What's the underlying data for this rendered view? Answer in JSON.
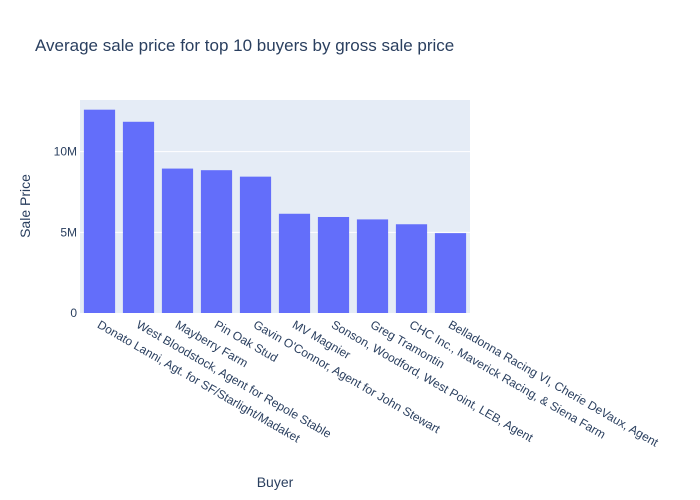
{
  "chart_data": {
    "type": "bar",
    "title": "Average sale price for top 10 buyers by gross sale price",
    "xlabel": "Buyer",
    "ylabel": "Sale Price",
    "ylim": [
      0,
      13200000
    ],
    "yticks": [
      0,
      5000000,
      10000000
    ],
    "ytick_labels": [
      "0",
      "5M",
      "10M"
    ],
    "grid": true,
    "legend": "none",
    "categories": [
      "Donato Lanni, Agt. for SF/Starlight/Madaket",
      "West Bloodstock, Agent for Repole Stable",
      "Mayberry Farm",
      "Pin Oak Stud",
      "Gavin O'Connor, Agent for John Stewart",
      "MV Magnier",
      "Sonson, Woodford, West Point, LEB, Agent",
      "Greg Tramontin",
      "CHC Inc., Maverick Racing, & Siena Farm",
      "Belladonna Racing VI, Cherie DeVaux, Agent"
    ],
    "values": [
      12600000,
      11850000,
      8950000,
      8850000,
      8450000,
      6150000,
      5950000,
      5800000,
      5500000,
      4950000
    ],
    "colors": {
      "bar": "#636efa",
      "plot_bg": "#e5ecf6",
      "text": "#2a3f5f"
    }
  }
}
